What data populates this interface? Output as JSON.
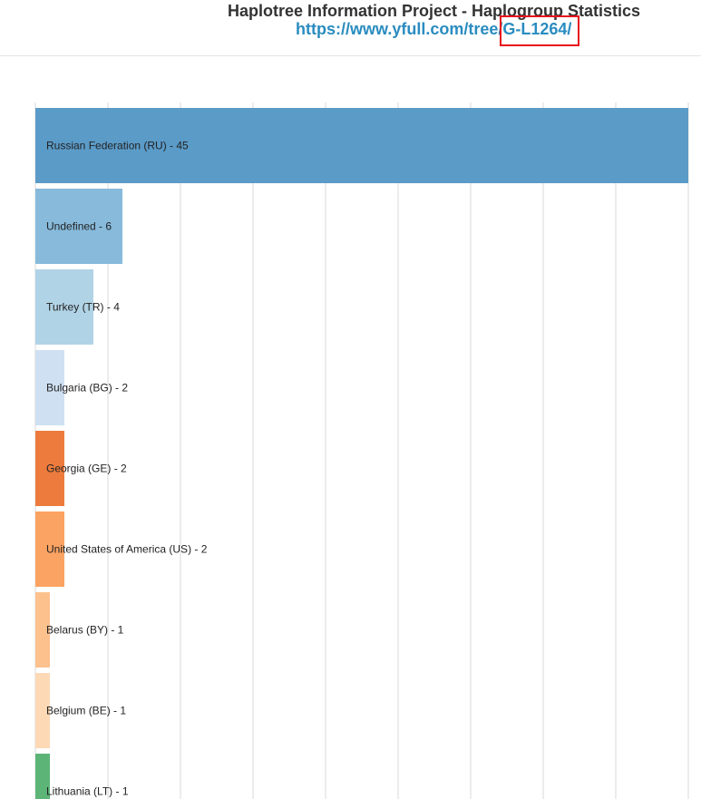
{
  "header": {
    "title": "Haplotree Information Project - Haplogroup Statistics",
    "url_prefix": "https://www.yfull.com/tree/",
    "url_highlight": "G-L1264/"
  },
  "chart_data": {
    "type": "bar",
    "orientation": "horizontal",
    "categories": [
      "Russian Federation (RU)",
      "Undefined",
      "Turkey (TR)",
      "Bulgaria (BG)",
      "Georgia (GE)",
      "United States of America (US)",
      "Belarus (BY)",
      "Belgium (BE)",
      "Lithuania (LT)"
    ],
    "values": [
      45,
      6,
      4,
      2,
      2,
      2,
      1,
      1,
      1
    ],
    "labels": [
      "Russian Federation (RU) - 45",
      "Undefined - 6",
      "Turkey (TR) - 4",
      "Bulgaria (BG) - 2",
      "Georgia (GE) - 2",
      "United States of America (US) - 2",
      "Belarus (BY) - 1",
      "Belgium (BE) - 1",
      "Lithuania (LT) - 1"
    ],
    "colors": [
      "#5b9bc8",
      "#87badb",
      "#b1d3e6",
      "#cfe0f2",
      "#ed7b3d",
      "#fba362",
      "#fdc18e",
      "#fdd9b6",
      "#5cb577"
    ],
    "xlim": [
      0,
      45
    ],
    "x_gridline_step": 5,
    "grid": true,
    "legend": "none"
  }
}
